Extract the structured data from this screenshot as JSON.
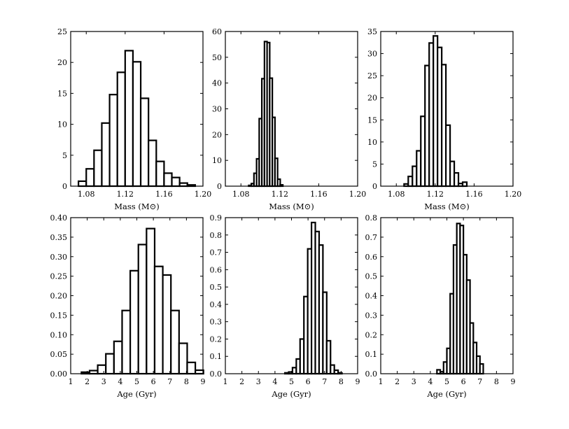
{
  "chart_data": [
    {
      "type": "bar",
      "panel": "mass-1",
      "xlabel": "Mass (M⊙)",
      "ylabel": "",
      "xlim": [
        1.064,
        1.2
      ],
      "ylim": [
        0,
        25
      ],
      "xticks": [
        "1.08",
        "1.12",
        "1.16",
        "1.20"
      ],
      "xtick_values": [
        1.08,
        1.12,
        1.16,
        1.2
      ],
      "yticks": [
        "0",
        "5",
        "10",
        "15",
        "20",
        "25"
      ],
      "ytick_values": [
        0,
        5,
        10,
        15,
        20,
        25
      ],
      "bin_start": 1.072,
      "bin_width": 0.008,
      "values": [
        0.8,
        2.8,
        5.8,
        10.2,
        14.8,
        18.4,
        21.9,
        20.1,
        14.2,
        7.4,
        4.0,
        2.1,
        1.4,
        0.5,
        0.2
      ]
    },
    {
      "type": "bar",
      "panel": "mass-2",
      "xlabel": "Mass (M⊙)",
      "ylabel": "",
      "xlim": [
        1.064,
        1.2
      ],
      "ylim": [
        0,
        60
      ],
      "xticks": [
        "1.08",
        "1.12",
        "1.16",
        "1.20"
      ],
      "xtick_values": [
        1.08,
        1.12,
        1.16,
        1.2
      ],
      "yticks": [
        "0",
        "10",
        "20",
        "30",
        "40",
        "50",
        "60"
      ],
      "ytick_values": [
        0,
        10,
        20,
        30,
        40,
        50,
        60
      ],
      "bin_start": 1.088,
      "bin_width": 0.0027,
      "values": [
        0.3,
        1.0,
        5.0,
        10.6,
        26.2,
        41.7,
        56.1,
        55.7,
        41.9,
        26.7,
        10.8,
        2.7,
        0.5
      ]
    },
    {
      "type": "bar",
      "panel": "mass-3",
      "xlabel": "Mass (M⊙)",
      "ylabel": "",
      "xlim": [
        1.064,
        1.2
      ],
      "ylim": [
        0,
        35
      ],
      "xticks": [
        "1.08",
        "1.12",
        "1.16",
        "1.20"
      ],
      "xtick_values": [
        1.08,
        1.12,
        1.16,
        1.2
      ],
      "yticks": [
        "0",
        "5",
        "10",
        "15",
        "20",
        "25",
        "30",
        "35"
      ],
      "ytick_values": [
        0,
        5,
        10,
        15,
        20,
        25,
        30,
        35
      ],
      "bin_start": 1.088,
      "bin_width": 0.0043,
      "values": [
        0.5,
        2.2,
        4.5,
        8.0,
        15.8,
        27.3,
        32.4,
        34.0,
        31.4,
        27.5,
        13.8,
        5.6,
        3.0,
        0.6,
        0.9
      ]
    },
    {
      "type": "bar",
      "panel": "age-1",
      "xlabel": "Age (Gyr)",
      "ylabel": "",
      "xlim": [
        1,
        9
      ],
      "ylim": [
        0,
        0.4
      ],
      "xticks": [
        "1",
        "2",
        "3",
        "4",
        "5",
        "6",
        "7",
        "8",
        "9"
      ],
      "xtick_values": [
        1,
        2,
        3,
        4,
        5,
        6,
        7,
        8,
        9
      ],
      "yticks": [
        "0.00",
        "0.05",
        "0.10",
        "0.15",
        "0.20",
        "0.25",
        "0.30",
        "0.35",
        "0.40"
      ],
      "ytick_values": [
        0,
        0.05,
        0.1,
        0.15,
        0.2,
        0.25,
        0.3,
        0.35,
        0.4
      ],
      "bin_start": 1.65,
      "bin_width": 0.492,
      "values": [
        0.004,
        0.008,
        0.022,
        0.051,
        0.083,
        0.162,
        0.264,
        0.331,
        0.372,
        0.275,
        0.253,
        0.162,
        0.078,
        0.029,
        0.009
      ]
    },
    {
      "type": "bar",
      "panel": "age-2",
      "xlabel": "Age (Gyr)",
      "ylabel": "",
      "xlim": [
        1,
        9
      ],
      "ylim": [
        0,
        0.9
      ],
      "xticks": [
        "1",
        "2",
        "3",
        "4",
        "5",
        "6",
        "7",
        "8",
        "9"
      ],
      "xtick_values": [
        1,
        2,
        3,
        4,
        5,
        6,
        7,
        8,
        9
      ],
      "yticks": [
        "0.0",
        "0.1",
        "0.2",
        "0.3",
        "0.4",
        "0.5",
        "0.6",
        "0.7",
        "0.8",
        "0.9"
      ],
      "ytick_values": [
        0,
        0.1,
        0.2,
        0.3,
        0.4,
        0.5,
        0.6,
        0.7,
        0.8,
        0.9
      ],
      "bin_start": 4.6,
      "bin_width": 0.23,
      "values": [
        0.005,
        0.01,
        0.035,
        0.085,
        0.2,
        0.445,
        0.72,
        0.872,
        0.82,
        0.742,
        0.47,
        0.19,
        0.05,
        0.02,
        0.005
      ]
    },
    {
      "type": "bar",
      "panel": "age-3",
      "xlabel": "Age (Gyr)",
      "ylabel": "",
      "xlim": [
        1,
        9
      ],
      "ylim": [
        0,
        0.8
      ],
      "xticks": [
        "1",
        "2",
        "3",
        "4",
        "5",
        "6",
        "7",
        "8",
        "9"
      ],
      "xtick_values": [
        1,
        2,
        3,
        4,
        5,
        6,
        7,
        8,
        9
      ],
      "yticks": [
        "0.0",
        "0.1",
        "0.2",
        "0.3",
        "0.4",
        "0.5",
        "0.6",
        "0.7",
        "0.8"
      ],
      "ytick_values": [
        0,
        0.1,
        0.2,
        0.3,
        0.4,
        0.5,
        0.6,
        0.7,
        0.8
      ],
      "bin_start": 4.4,
      "bin_width": 0.2,
      "values": [
        0.02,
        0.01,
        0.06,
        0.13,
        0.41,
        0.66,
        0.77,
        0.76,
        0.61,
        0.48,
        0.26,
        0.16,
        0.09,
        0.05
      ]
    }
  ]
}
